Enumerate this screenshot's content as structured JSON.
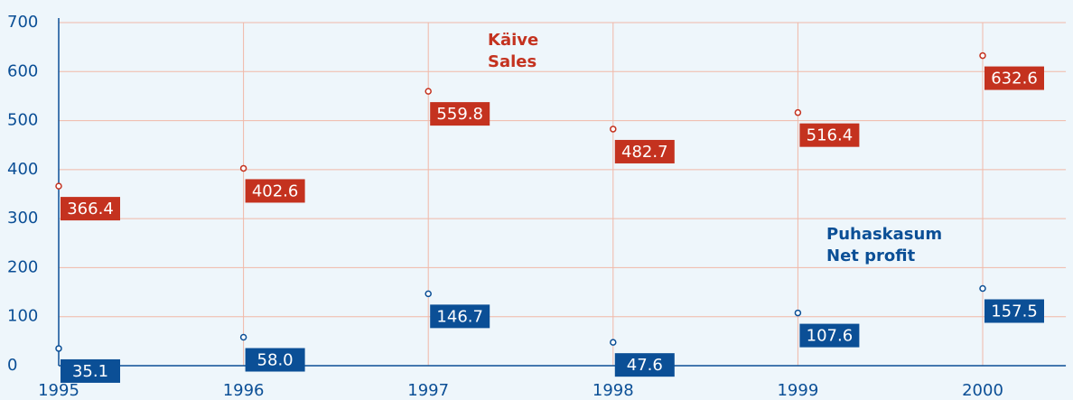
{
  "chart_data": {
    "type": "scatter",
    "x": [
      1995,
      1996,
      1997,
      1998,
      1999,
      2000
    ],
    "series": [
      {
        "color": "#c4321f",
        "values": [
          366.4,
          402.6,
          559.8,
          482.7,
          516.4,
          632.6
        ],
        "value_labels": [
          "366.4",
          "402.6",
          "559.8",
          "482.7",
          "516.4",
          "632.6"
        ]
      },
      {
        "color": "#0b4f96",
        "values": [
          35.1,
          58.0,
          146.7,
          47.6,
          107.6,
          157.5
        ],
        "value_labels": [
          "35.1",
          "58.0",
          "146.7",
          "47.6",
          "107.6",
          "157.5"
        ]
      }
    ],
    "annotations": [
      {
        "text": [
          "Käive",
          "Sales"
        ],
        "color": "#c4321f"
      },
      {
        "text": [
          "Puhaskasum",
          "Net profit"
        ],
        "color": "#0b4f96"
      }
    ],
    "xlim": [
      1995,
      2000.45
    ],
    "xticks": [
      1995,
      1996,
      1997,
      1998,
      1999,
      2000
    ],
    "ylim": [
      0,
      700
    ],
    "yticks": [
      0,
      100,
      200,
      300,
      400,
      500,
      600,
      700
    ],
    "grid": true
  }
}
